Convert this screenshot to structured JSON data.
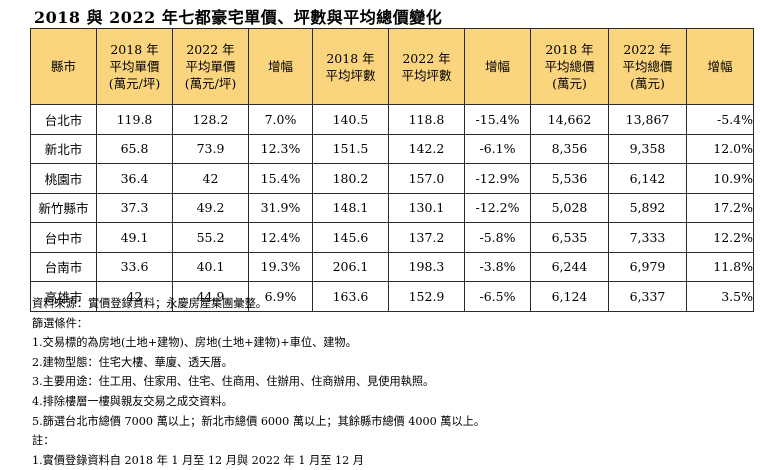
{
  "title": "2018 與 2022 年七都豪宅單價、坪數與平均總價變化",
  "table": {
    "headers": [
      {
        "lines": [
          "縣市"
        ]
      },
      {
        "lines": [
          "2018 年",
          "平均單價",
          "(萬元/坪)"
        ]
      },
      {
        "lines": [
          "2022 年",
          "平均單價",
          "(萬元/坪)"
        ]
      },
      {
        "lines": [
          "增幅"
        ]
      },
      {
        "lines": [
          "2018 年",
          "平均坪數"
        ]
      },
      {
        "lines": [
          "2022 年",
          "平均坪數"
        ]
      },
      {
        "lines": [
          "增幅"
        ]
      },
      {
        "lines": [
          "2018 年",
          "平均總價",
          "(萬元)"
        ]
      },
      {
        "lines": [
          "2022 年",
          "平均總價",
          "(萬元)"
        ]
      },
      {
        "lines": [
          "增幅"
        ]
      }
    ],
    "rows": [
      [
        "台北市",
        "119.8",
        "128.2",
        "7.0%",
        "140.5",
        "118.8",
        "-15.4%",
        "14,662",
        "13,867",
        "-5.4%"
      ],
      [
        "新北市",
        "65.8",
        "73.9",
        "12.3%",
        "151.5",
        "142.2",
        "-6.1%",
        "8,356",
        "9,358",
        "12.0%"
      ],
      [
        "桃園市",
        "36.4",
        "42",
        "15.4%",
        "180.2",
        "157.0",
        "-12.9%",
        "5,536",
        "6,142",
        "10.9%"
      ],
      [
        "新竹縣市",
        "37.3",
        "49.2",
        "31.9%",
        "148.1",
        "130.1",
        "-12.2%",
        "5,028",
        "5,892",
        "17.2%"
      ],
      [
        "台中市",
        "49.1",
        "55.2",
        "12.4%",
        "145.6",
        "137.2",
        "-5.8%",
        "6,535",
        "7,333",
        "12.2%"
      ],
      [
        "台南市",
        "33.6",
        "40.1",
        "19.3%",
        "206.1",
        "198.3",
        "-3.8%",
        "6,244",
        "6,979",
        "11.8%"
      ],
      [
        "高雄市",
        "42",
        "44.9",
        "6.9%",
        "163.6",
        "152.9",
        "-6.5%",
        "6,124",
        "6,337",
        "3.5%"
      ]
    ]
  },
  "notes": [
    "資料來源：實價登錄資料；永慶房產集團彙整。",
    "篩選條件：",
    "1.交易標的為房地(土地+建物)、房地(土地+建物)+車位、建物。",
    "2.建物型態：住宅大樓、華廈、透天厝。",
    "3.主要用途：住工用、住家用、住宅、住商用、住辦用、住商辦用、見使用執照。",
    "4.排除樓層一樓與親友交易之成交資料。",
    "5.篩選台北市總價 7000 萬以上；新北市總價 6000 萬以上；其餘縣市總價 4000 萬以上。",
    "註：",
    "1.實價登錄資料自 2018 年 1 月至 12 月與 2022 年 1 月至 12 月"
  ],
  "colors": {
    "header_background": "#fbd47e",
    "border": "#2b2b2b"
  }
}
